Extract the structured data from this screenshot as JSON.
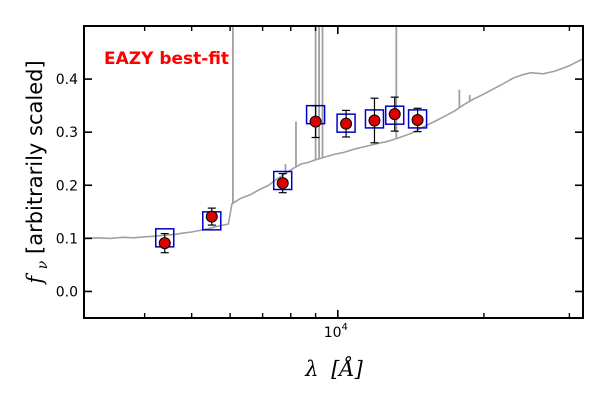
{
  "chart_data": {
    "type": "scatter",
    "title": "",
    "xlabel": "λ [Å]",
    "ylabel": "f_ν [arbitrarily scaled]",
    "ylabel_symbol": "f",
    "ylabel_subscript": "ν",
    "ylabel_text": " [arbitrarily scaled]",
    "xlabel_symbol": "λ",
    "xlabel_unit": "[Å]",
    "x_scale": "log",
    "xlim": [
      3000,
      32000
    ],
    "ylim": [
      -0.05,
      0.5
    ],
    "yticks": [
      0.0,
      0.1,
      0.2,
      0.3,
      0.4
    ],
    "ytick_labels": [
      "0.0",
      "0.1",
      "0.2",
      "0.3",
      "0.4"
    ],
    "xtick_major": [
      10000
    ],
    "xtick_major_label_base": "10",
    "xtick_major_label_exp": "4",
    "xtick_minor": [
      4000,
      5000,
      6000,
      7000,
      8000,
      9000,
      20000,
      30000
    ],
    "grid": false,
    "annotation": {
      "text": "EAZY best-fit",
      "color": "#ff0000"
    },
    "colors": {
      "sed_line": "#a0a0a0",
      "model_box": "#0000cc",
      "observed_point": "#dd0000",
      "errorbar": "#000000"
    },
    "sed_template": {
      "x": [
        3000,
        3200,
        3400,
        3600,
        3800,
        4000,
        4200,
        4400,
        4600,
        4800,
        5000,
        5200,
        5400,
        5600,
        5800,
        5950,
        6050,
        6300,
        6600,
        6900,
        7200,
        7500,
        7800,
        8100,
        8400,
        8700,
        9000,
        9400,
        9800,
        10300,
        10800,
        11400,
        12000,
        12700,
        13400,
        14200,
        15000,
        15800,
        16600,
        17400,
        18200,
        19000,
        20000,
        21000,
        22000,
        23000,
        24000,
        25000,
        26500,
        28000,
        30000,
        31000,
        32000
      ],
      "y": [
        0.1,
        0.101,
        0.1,
        0.102,
        0.101,
        0.103,
        0.104,
        0.106,
        0.107,
        0.11,
        0.112,
        0.115,
        0.118,
        0.122,
        0.125,
        0.127,
        0.165,
        0.175,
        0.182,
        0.192,
        0.2,
        0.212,
        0.222,
        0.232,
        0.24,
        0.243,
        0.248,
        0.253,
        0.258,
        0.262,
        0.268,
        0.273,
        0.278,
        0.283,
        0.29,
        0.298,
        0.31,
        0.32,
        0.33,
        0.34,
        0.352,
        0.362,
        0.372,
        0.382,
        0.392,
        0.402,
        0.408,
        0.412,
        0.41,
        0.415,
        0.425,
        0.432,
        0.438
      ]
    },
    "emission_lines": [
      {
        "x": 6080,
        "y_top": 0.5
      },
      {
        "x": 7800,
        "y_top": 0.24
      },
      {
        "x": 8200,
        "y_top": 0.32
      },
      {
        "x": 9000,
        "y_top": 0.5
      },
      {
        "x": 9150,
        "y_top": 0.5
      },
      {
        "x": 9300,
        "y_top": 0.5
      },
      {
        "x": 13200,
        "y_top": 0.5
      },
      {
        "x": 17800,
        "y_top": 0.38
      },
      {
        "x": 18700,
        "y_top": 0.37
      }
    ],
    "series": [
      {
        "kind": "observed",
        "x": [
          4400,
          5500,
          7700,
          9000,
          10400,
          11900,
          13100,
          14600
        ],
        "y": [
          0.091,
          0.141,
          0.204,
          0.32,
          0.316,
          0.322,
          0.334,
          0.323
        ],
        "yerr": [
          0.018,
          0.016,
          0.018,
          0.03,
          0.025,
          0.042,
          0.032,
          0.022
        ]
      },
      {
        "kind": "model",
        "x": [
          4400,
          5500,
          7700,
          9000,
          10400,
          11900,
          13100,
          14600
        ],
        "y": [
          0.101,
          0.133,
          0.209,
          0.333,
          0.317,
          0.325,
          0.332,
          0.325
        ]
      }
    ]
  }
}
